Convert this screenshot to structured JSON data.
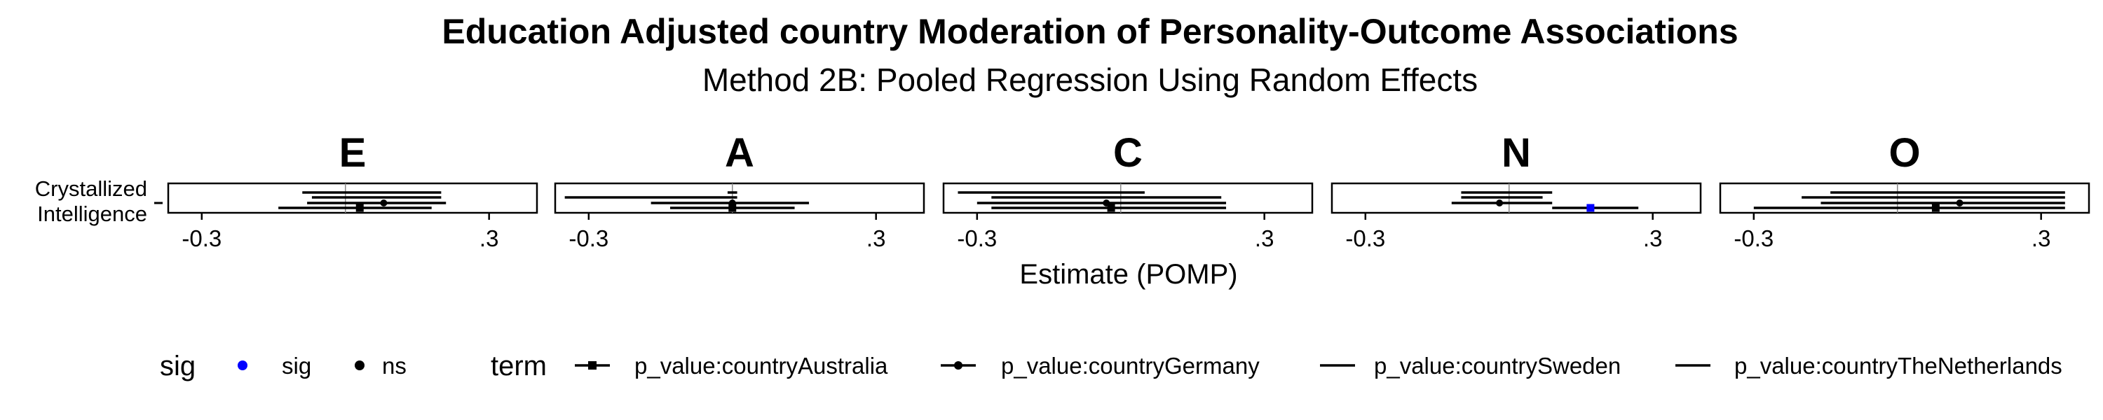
{
  "chart_data": {
    "type": "forest",
    "title": "Education Adjusted country Moderation of Personality-Outcome Associations",
    "subtitle": "Method 2B: Pooled Regression Using Random Effects",
    "xlabel": "Estimate (POMP)",
    "ylabel": "",
    "outcome_label_lines": [
      "Crystallized",
      "Intelligence"
    ],
    "xlim": [
      -0.37,
      0.4
    ],
    "x_ticks": [
      -0.3,
      0.3
    ],
    "x_tick_labels": [
      "-0.3",
      ".3"
    ],
    "reference_line": 0,
    "facets": [
      "E",
      "A",
      "C",
      "N",
      "O"
    ],
    "terms": [
      "p_value:countryAustralia",
      "p_value:countryGermany",
      "p_value:countrySweden",
      "p_value:countryTheNetherlands"
    ],
    "term_shapes": [
      "square",
      "circle",
      "none",
      "none"
    ],
    "estimates": {
      "E": [
        {
          "term": "p_value:countryAustralia",
          "est": 0.03,
          "lo": -0.14,
          "hi": 0.18,
          "sig": "ns"
        },
        {
          "term": "p_value:countryGermany",
          "est": 0.08,
          "lo": -0.08,
          "hi": 0.21,
          "sig": "ns"
        },
        {
          "term": "p_value:countrySweden",
          "est": 0.03,
          "lo": -0.07,
          "hi": 0.2,
          "sig": "ns"
        },
        {
          "term": "p_value:countryTheNetherlands",
          "est": 0.03,
          "lo": -0.09,
          "hi": 0.2,
          "sig": "ns"
        }
      ],
      "A": [
        {
          "term": "p_value:countryAustralia",
          "est": 0.0,
          "lo": -0.13,
          "hi": 0.13,
          "sig": "ns"
        },
        {
          "term": "p_value:countryGermany",
          "est": 0.0,
          "lo": -0.17,
          "hi": 0.16,
          "sig": "ns"
        },
        {
          "term": "p_value:countrySweden",
          "est": 0.0,
          "lo": -0.35,
          "hi": 0.01,
          "sig": "ns"
        },
        {
          "term": "p_value:countryTheNetherlands",
          "est": 0.0,
          "lo": -0.01,
          "hi": 0.01,
          "sig": "ns"
        }
      ],
      "C": [
        {
          "term": "p_value:countryAustralia",
          "est": -0.02,
          "lo": -0.27,
          "hi": 0.22,
          "sig": "ns"
        },
        {
          "term": "p_value:countryGermany",
          "est": -0.03,
          "lo": -0.3,
          "hi": 0.22,
          "sig": "ns"
        },
        {
          "term": "p_value:countrySweden",
          "est": -0.03,
          "lo": -0.27,
          "hi": 0.21,
          "sig": "ns"
        },
        {
          "term": "p_value:countryTheNetherlands",
          "est": -0.03,
          "lo": -0.34,
          "hi": 0.05,
          "sig": "ns"
        }
      ],
      "N": [
        {
          "term": "p_value:countryAustralia",
          "est": 0.17,
          "lo": 0.09,
          "hi": 0.27,
          "sig": "sig"
        },
        {
          "term": "p_value:countryGermany",
          "est": -0.02,
          "lo": -0.12,
          "hi": 0.09,
          "sig": "ns"
        },
        {
          "term": "p_value:countrySweden",
          "est": -0.02,
          "lo": -0.1,
          "hi": 0.07,
          "sig": "ns"
        },
        {
          "term": "p_value:countryTheNetherlands",
          "est": -0.02,
          "lo": -0.1,
          "hi": 0.09,
          "sig": "ns"
        }
      ],
      "O": [
        {
          "term": "p_value:countryAustralia",
          "est": 0.08,
          "lo": -0.3,
          "hi": 0.35,
          "sig": "ns"
        },
        {
          "term": "p_value:countryGermany",
          "est": 0.13,
          "lo": -0.16,
          "hi": 0.35,
          "sig": "ns"
        },
        {
          "term": "p_value:countrySweden",
          "est": 0.08,
          "lo": -0.2,
          "hi": 0.35,
          "sig": "ns"
        },
        {
          "term": "p_value:countryTheNetherlands",
          "est": 0.08,
          "lo": -0.14,
          "hi": 0.35,
          "sig": "ns"
        }
      ]
    },
    "legend": {
      "placement": "bottom",
      "sig_title": "sig",
      "sig_items": [
        {
          "label": "sig",
          "color": "#0000ff"
        },
        {
          "label": "ns",
          "color": "#000000"
        }
      ],
      "term_title": "term"
    },
    "colors": {
      "sig": "#0000ff",
      "ns": "#000000",
      "panel_border": "#000000",
      "reference": "#888888"
    }
  }
}
